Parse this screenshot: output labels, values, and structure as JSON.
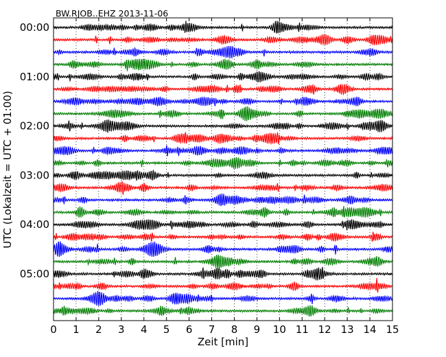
{
  "chart_data": {
    "type": "line",
    "chart_kind": "dayplot",
    "title": "BW.RJOB..EHZ 2013-11-06",
    "xlabel": "Zeit  [min]",
    "ylabel": "UTC (Lokalzeit = UTC + 01:00)",
    "xlim": [
      0,
      15
    ],
    "x_ticks": [
      0,
      1,
      2,
      3,
      4,
      5,
      6,
      7,
      8,
      9,
      10,
      11,
      12,
      13,
      14,
      15
    ],
    "x_tick_labels": [
      "0",
      "1",
      "2",
      "3",
      "4",
      "5",
      "6",
      "7",
      "8",
      "9",
      "10",
      "11",
      "12",
      "13",
      "14",
      "15"
    ],
    "y_tick_labels": [
      "00:00",
      "01:00",
      "02:00",
      "03:00",
      "04:00",
      "05:00"
    ],
    "y_tick_rows": [
      0,
      4,
      8,
      12,
      16,
      20
    ],
    "trace_count": 24,
    "minutes_per_trace": 15,
    "trace_colors": [
      "#000000",
      "#ff0000",
      "#0000ff",
      "#007f00"
    ],
    "grid": "vertical dotted at each minute",
    "series": [
      {
        "start": "00:00"
      },
      {
        "start": "00:15"
      },
      {
        "start": "00:30"
      },
      {
        "start": "00:45"
      },
      {
        "start": "01:00"
      },
      {
        "start": "01:15"
      },
      {
        "start": "01:30"
      },
      {
        "start": "01:45"
      },
      {
        "start": "02:00"
      },
      {
        "start": "02:15"
      },
      {
        "start": "02:30"
      },
      {
        "start": "02:45"
      },
      {
        "start": "03:00"
      },
      {
        "start": "03:15"
      },
      {
        "start": "03:30"
      },
      {
        "start": "03:45"
      },
      {
        "start": "04:00"
      },
      {
        "start": "04:15"
      },
      {
        "start": "04:30"
      },
      {
        "start": "04:45"
      },
      {
        "start": "05:00"
      },
      {
        "start": "05:15"
      },
      {
        "start": "05:30"
      },
      {
        "start": "05:45"
      }
    ]
  }
}
